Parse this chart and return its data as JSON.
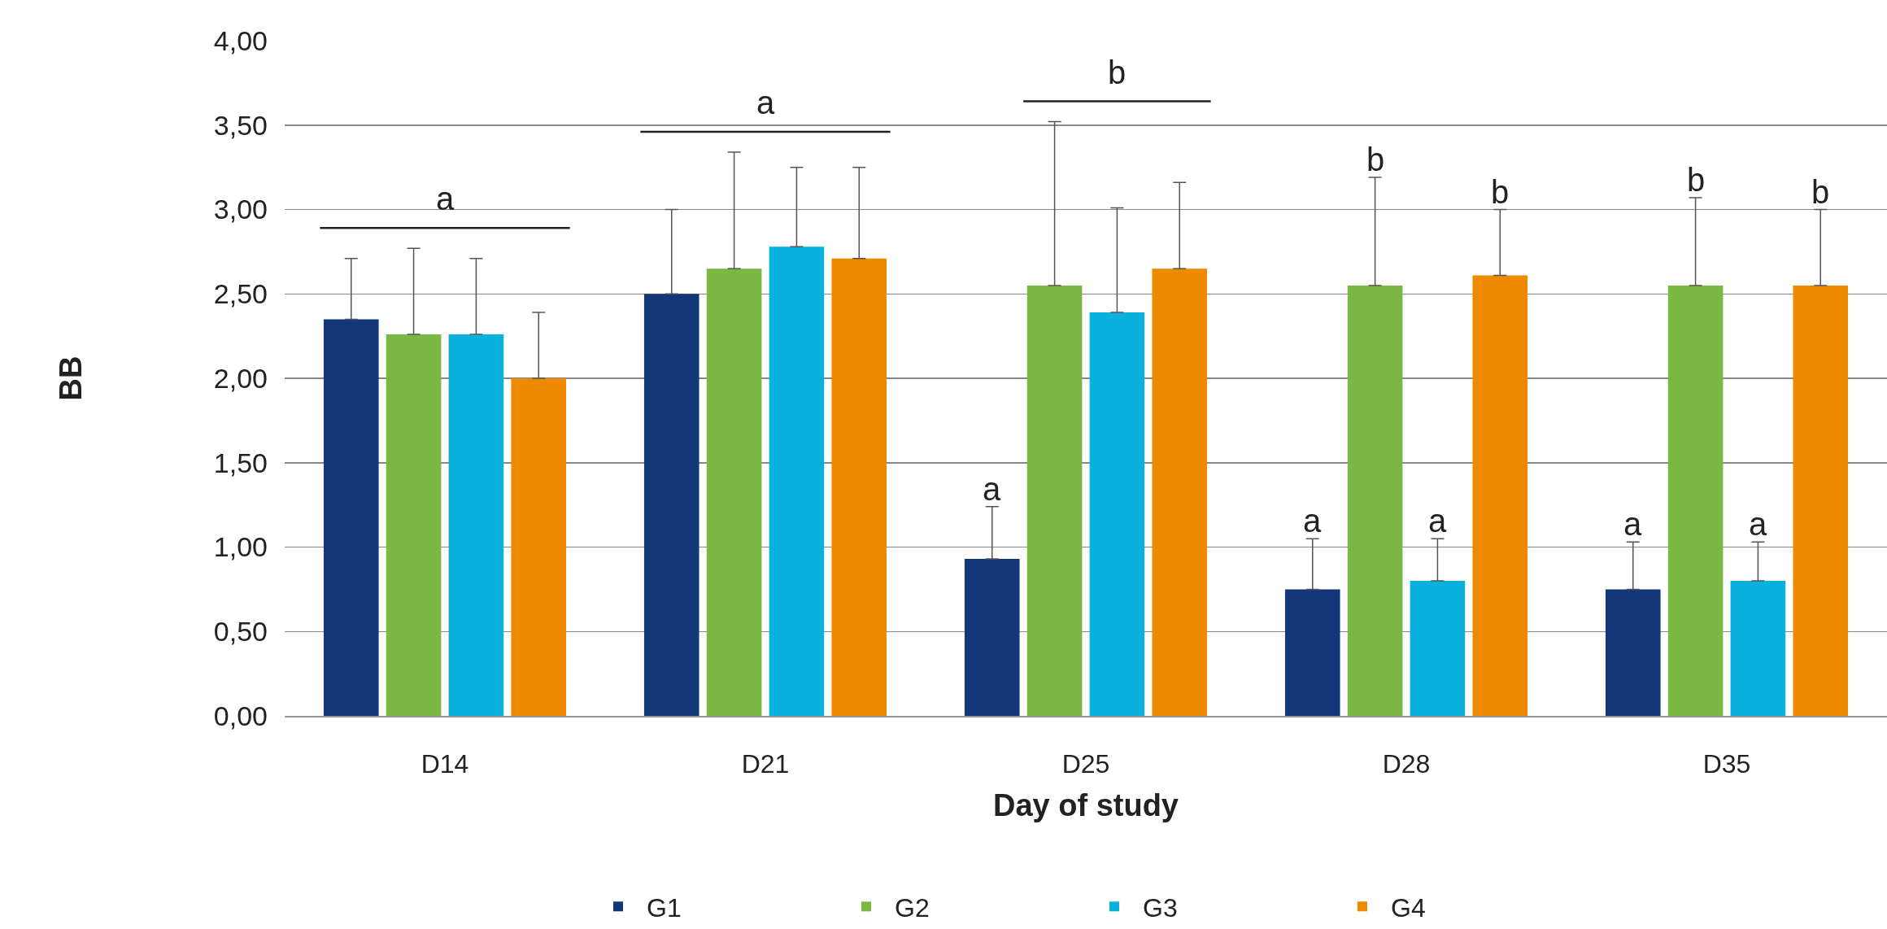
{
  "chart_data": {
    "type": "bar",
    "xlabel": "Day of study",
    "ylabel": "BB",
    "categories": [
      "D14",
      "D21",
      "D25",
      "D28",
      "D35"
    ],
    "series": [
      {
        "name": "G1",
        "color": "#143779",
        "values": [
          2.35,
          2.5,
          0.93,
          0.75,
          0.75
        ],
        "errors": [
          [
            2.35,
            2.71
          ],
          [
            2.5,
            3.0
          ],
          [
            0.93,
            1.24
          ],
          [
            0.75,
            1.05
          ],
          [
            0.75,
            1.03
          ]
        ]
      },
      {
        "name": "G2",
        "color": "#7ab843",
        "values": [
          2.26,
          2.65,
          2.55,
          2.55,
          2.55
        ],
        "errors": [
          [
            2.26,
            2.77
          ],
          [
            2.65,
            3.34
          ],
          [
            2.55,
            3.52
          ],
          [
            2.55,
            3.19
          ],
          [
            2.55,
            3.07
          ]
        ]
      },
      {
        "name": "G3",
        "color": "#0ab1dc",
        "values": [
          2.26,
          2.78,
          2.39,
          0.8,
          0.8
        ],
        "errors": [
          [
            2.26,
            2.71
          ],
          [
            2.78,
            3.25
          ],
          [
            2.39,
            3.01
          ],
          [
            0.8,
            1.05
          ],
          [
            0.8,
            1.03
          ]
        ]
      },
      {
        "name": "G4",
        "color": "#ee8a00",
        "values": [
          2.0,
          2.71,
          2.65,
          2.61,
          2.55
        ],
        "errors": [
          [
            2.0,
            2.39
          ],
          [
            2.71,
            3.25
          ],
          [
            2.65,
            3.16
          ],
          [
            2.61,
            3.0
          ],
          [
            2.55,
            3.0
          ]
        ]
      }
    ],
    "ylim": [
      0,
      4
    ],
    "yticks": [
      {
        "value": 0,
        "label": "0,00"
      },
      {
        "value": 0.5,
        "label": "0,50"
      },
      {
        "value": 1,
        "label": "1,00"
      },
      {
        "value": 1.5,
        "label": "1,50"
      },
      {
        "value": 2,
        "label": "2,00"
      },
      {
        "value": 2.5,
        "label": "2,50"
      },
      {
        "value": 3,
        "label": "3,00"
      },
      {
        "value": 3.5,
        "label": "3,50"
      },
      {
        "value": 4,
        "label": "4,00"
      }
    ],
    "grid": "y",
    "legend": "bottom",
    "annotations": [
      "a",
      "a",
      "b",
      {
        "text": "a",
        "x": "D25",
        "y": 1.24
      },
      {
        "text": "a",
        "x": "D28",
        "y": 1.05
      },
      "b",
      {
        "text": "a",
        "x": "D28",
        "y": 1.05
      },
      "b",
      {
        "text": "a",
        "x": "D35",
        "y": 1.03
      },
      "b",
      {
        "text": "a",
        "x": "D35",
        "y": 1.03
      },
      "b"
    ]
  }
}
